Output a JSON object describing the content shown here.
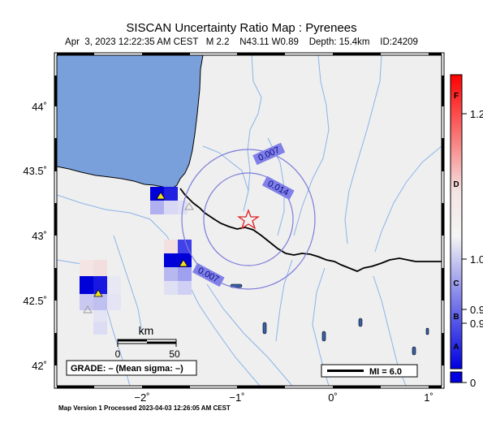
{
  "header": {
    "title": "SISCAN Uncertainty Ratio Map : Pyrenees",
    "subtitle": "Apr  3, 2023 12:22:35 AM CEST   M 2.2    N43.11 W0.89    Depth: 15.4km    ID:24209"
  },
  "map": {
    "lat_labels": [
      "44˚",
      "43.5˚",
      "43˚",
      "42.5˚",
      "42˚"
    ],
    "lon_labels": [
      "−2˚",
      "−1˚",
      "0˚",
      "1˚"
    ],
    "contour_labels": [
      "0.007",
      "0.014",
      "0.007"
    ],
    "scale_bar": {
      "unit": "km",
      "tick_0": "0",
      "tick_50": "50"
    },
    "grade_text": "GRADE: – (Mean sigma: –)",
    "mi_text": "MI = 6.0",
    "colors": {
      "sea": "#7aa0dc",
      "land": "#efefef",
      "river": "#8ab4e8",
      "contour": "#7c7cdc",
      "epicenter": "#e02020",
      "station": "#f0e020"
    }
  },
  "colorbar": {
    "grade_letters": [
      "F",
      "D",
      "C",
      "B",
      "A"
    ],
    "tick_values": [
      "1.2",
      "1.0",
      "0.9",
      "0.9",
      "0"
    ],
    "colors": {
      "top": "#ff0000",
      "middle": "#f4f4f4",
      "bottom": "#0000e0"
    }
  },
  "footer": {
    "text": "Map Version 1 Processed 2023-04-03 12:26:05 AM CEST"
  }
}
